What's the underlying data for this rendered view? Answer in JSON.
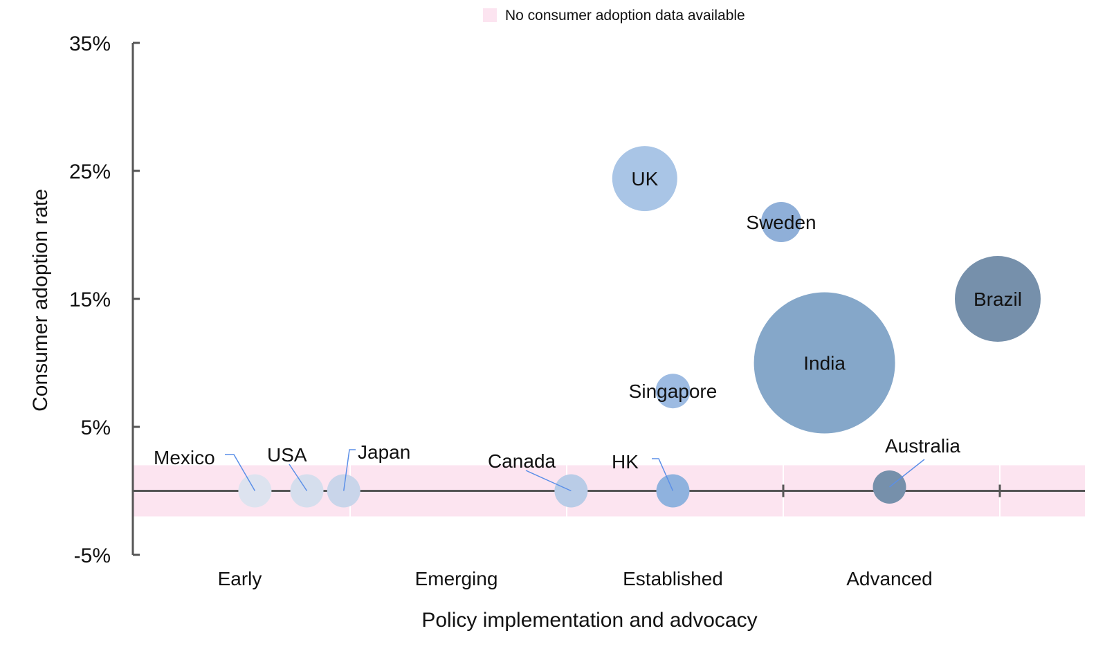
{
  "chart_data": {
    "type": "bubble",
    "legend": {
      "label": "No consumer adoption data available",
      "color": "#fce4f0",
      "position": "top-center"
    },
    "y_axis": {
      "label": "Consumer adoption rate",
      "range": [
        -5,
        35
      ],
      "ticks": [
        35,
        25,
        15,
        5,
        -5
      ],
      "tick_labels": [
        "35%",
        "25%",
        "15%",
        "5%",
        "-5%"
      ]
    },
    "x_axis": {
      "label": "Policy implementation and advocacy",
      "range": [
        0,
        4
      ],
      "categories": [
        "Early",
        "Emerging",
        "Established",
        "Advanced"
      ]
    },
    "no_data_band": {
      "y_range": [
        -2,
        2
      ]
    },
    "points": [
      {
        "label": "Mexico",
        "x": 0.57,
        "y": 0,
        "size": 48,
        "color": "#dde3ef",
        "label_pos": "leader"
      },
      {
        "label": "USA",
        "x": 0.81,
        "y": 0,
        "size": 48,
        "color": "#d5deed",
        "label_pos": "leader"
      },
      {
        "label": "Japan",
        "x": 0.98,
        "y": 0,
        "size": 48,
        "color": "#c9d5ea",
        "label_pos": "leader"
      },
      {
        "label": "Canada",
        "x": 2.03,
        "y": 0,
        "size": 48,
        "color": "#b9cce7",
        "label_pos": "leader"
      },
      {
        "label": "HK",
        "x": 2.5,
        "y": 0,
        "size": 48,
        "color": "#8fb2de",
        "label_pos": "leader"
      },
      {
        "label": "Australia",
        "x": 3.5,
        "y": 0.3,
        "size": 48,
        "color": "#7690ab",
        "label_pos": "leader"
      },
      {
        "label": "UK",
        "x": 2.37,
        "y": 24.4,
        "size": 94,
        "color": "#a9c5e6",
        "label_pos": "center"
      },
      {
        "label": "Sweden",
        "x": 3.0,
        "y": 21.0,
        "size": 58,
        "color": "#8fafd8",
        "label_pos": "center"
      },
      {
        "label": "Singapore",
        "x": 2.5,
        "y": 7.8,
        "size": 50,
        "color": "#9dbbe2",
        "label_pos": "center"
      },
      {
        "label": "India",
        "x": 3.2,
        "y": 10.0,
        "size": 204,
        "color": "#85a7c9",
        "label_pos": "center"
      },
      {
        "label": "Brazil",
        "x": 4.0,
        "y": 15.0,
        "size": 124,
        "color": "#7690ab",
        "label_pos": "center"
      }
    ]
  },
  "colors": {
    "axis": "#555555",
    "band_divider": "#ffffff",
    "leader_line": "#5b8fe8"
  }
}
